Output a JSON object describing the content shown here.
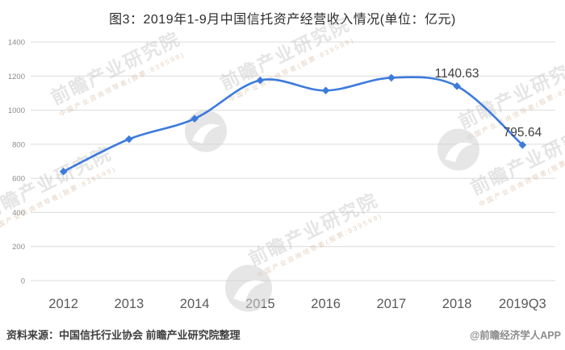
{
  "chart_data": {
    "type": "line",
    "title": "图3：2019年1-9月中国信托资产经营收入情况(单位：亿元)",
    "categories": [
      "2012",
      "2013",
      "2014",
      "2015",
      "2016",
      "2017",
      "2018",
      "2019Q3"
    ],
    "values": [
      640,
      830,
      950,
      1175,
      1115,
      1190,
      1140.63,
      795.64
    ],
    "point_labels": {
      "6": "1140.63",
      "7": "795.64"
    },
    "ylim": [
      0,
      1400
    ],
    "yticks": [
      0,
      200,
      400,
      600,
      800,
      1000,
      1200,
      1400
    ],
    "grid": true,
    "legend": "none",
    "marker": "diamond",
    "line_color": "#3d7bdb",
    "grid_color": "#dbdbdb",
    "xtick_color": "#595959",
    "ytick_color": "#8c8c8c",
    "point_label_color": "#404040"
  },
  "footer": {
    "source": "资料来源：中国信托行业协会 前瞻产业研究院整理",
    "credit": "@前瞻经济学人APP"
  },
  "watermark": {
    "text": "前瞻产业研究院",
    "subtext": "中国产业咨询领导者(股票:839599)"
  }
}
